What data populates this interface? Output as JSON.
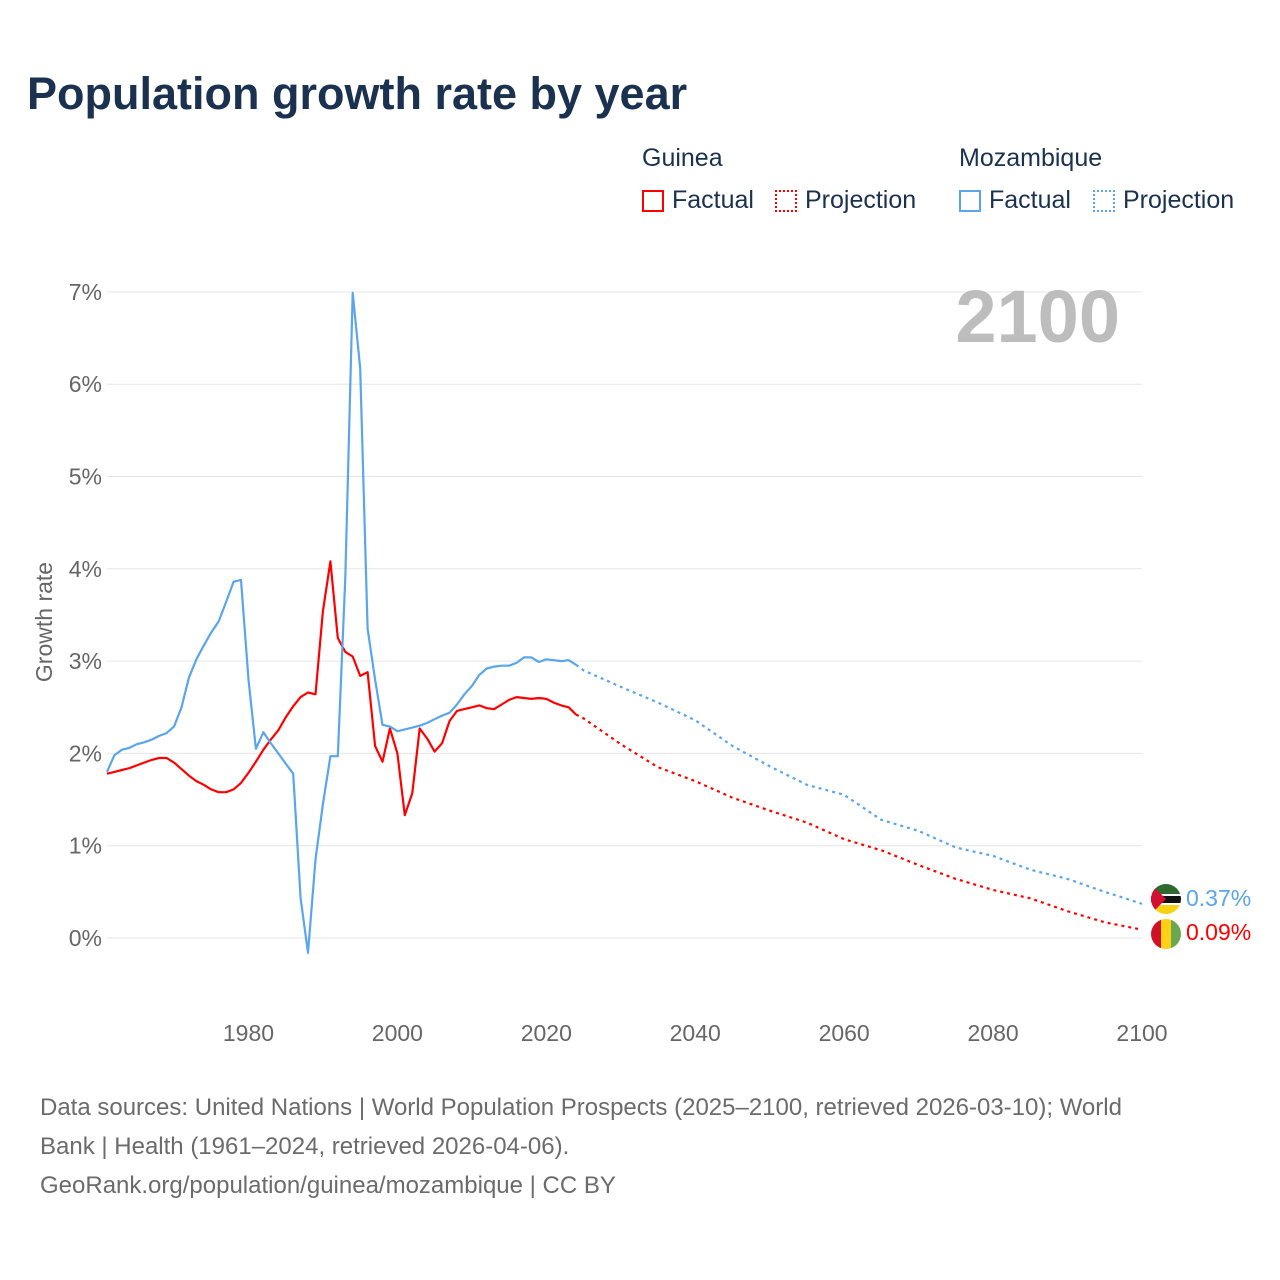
{
  "chart_data": {
    "type": "line",
    "title": "Population growth rate by year",
    "ylabel": "Growth rate",
    "xlabel": "",
    "xlim": [
      1961,
      2100
    ],
    "ylim": [
      -0.5,
      7
    ],
    "xticks": [
      "1980",
      "2000",
      "2020",
      "2040",
      "2060",
      "2080",
      "2100"
    ],
    "xtick_values": [
      1980,
      2000,
      2020,
      2040,
      2060,
      2080,
      2100
    ],
    "yticks": [
      "0%",
      "1%",
      "2%",
      "3%",
      "4%",
      "5%",
      "6%",
      "7%"
    ],
    "ytick_values": [
      0,
      1,
      2,
      3,
      4,
      5,
      6,
      7
    ],
    "grid": true,
    "year_display": "2100",
    "legend": {
      "placement": "top-right",
      "groups": [
        {
          "name": "Guinea",
          "factual": "Factual",
          "projection": "Projection",
          "color": "#ff0000"
        },
        {
          "name": "Mozambique",
          "factual": "Factual",
          "projection": "Projection",
          "color": "#5aa5ec"
        }
      ]
    },
    "series": [
      {
        "name": "Guinea",
        "color": "#ff0000",
        "end_label": "0.09%",
        "factual": {
          "x": [
            1961,
            1962,
            1963,
            1964,
            1965,
            1966,
            1967,
            1968,
            1969,
            1970,
            1971,
            1972,
            1973,
            1974,
            1975,
            1976,
            1977,
            1978,
            1979,
            1980,
            1981,
            1982,
            1983,
            1984,
            1985,
            1986,
            1987,
            1988,
            1989,
            1990,
            1991,
            1992,
            1993,
            1994,
            1995,
            1996,
            1997,
            1998,
            1999,
            2000,
            2001,
            2002,
            2003,
            2004,
            2005,
            2006,
            2007,
            2008,
            2009,
            2010,
            2011,
            2012,
            2013,
            2014,
            2015,
            2016,
            2017,
            2018,
            2019,
            2020,
            2021,
            2022,
            2023,
            2024
          ],
          "y": [
            1.78,
            1.8,
            1.82,
            1.84,
            1.87,
            1.9,
            1.93,
            1.95,
            1.95,
            1.9,
            1.83,
            1.76,
            1.7,
            1.66,
            1.61,
            1.58,
            1.58,
            1.61,
            1.68,
            1.79,
            1.91,
            2.04,
            2.15,
            2.25,
            2.39,
            2.51,
            2.61,
            2.66,
            2.64,
            3.54,
            4.08,
            3.25,
            3.1,
            3.05,
            2.84,
            2.88,
            2.08,
            1.91,
            2.27,
            2.0,
            1.33,
            1.57,
            2.27,
            2.16,
            2.02,
            2.11,
            2.35,
            2.46,
            2.48,
            2.5,
            2.52,
            2.49,
            2.48,
            2.53,
            2.58,
            2.61,
            2.6,
            2.59,
            2.6,
            2.59,
            2.55,
            2.52,
            2.5,
            2.42
          ]
        },
        "projection": {
          "x": [
            2024,
            2025,
            2030,
            2035,
            2040,
            2045,
            2050,
            2055,
            2060,
            2065,
            2070,
            2075,
            2080,
            2085,
            2090,
            2095,
            2100
          ],
          "y": [
            2.42,
            2.38,
            2.1,
            1.85,
            1.7,
            1.52,
            1.38,
            1.25,
            1.07,
            0.95,
            0.79,
            0.64,
            0.52,
            0.43,
            0.29,
            0.17,
            0.09
          ]
        }
      },
      {
        "name": "Mozambique",
        "color": "#5aa5ec",
        "end_label": "0.37%",
        "factual": {
          "x": [
            1961,
            1962,
            1963,
            1964,
            1965,
            1966,
            1967,
            1968,
            1969,
            1970,
            1971,
            1972,
            1973,
            1974,
            1975,
            1976,
            1977,
            1978,
            1979,
            1980,
            1981,
            1982,
            1983,
            1984,
            1985,
            1986,
            1987,
            1988,
            1989,
            1990,
            1991,
            1992,
            1993,
            1994,
            1995,
            1996,
            1997,
            1998,
            1999,
            2000,
            2001,
            2002,
            2003,
            2004,
            2005,
            2006,
            2007,
            2008,
            2009,
            2010,
            2011,
            2012,
            2013,
            2014,
            2015,
            2016,
            2017,
            2018,
            2019,
            2020,
            2021,
            2022,
            2023,
            2024
          ],
          "y": [
            1.8,
            1.98,
            2.04,
            2.06,
            2.1,
            2.12,
            2.15,
            2.19,
            2.22,
            2.29,
            2.5,
            2.82,
            3.02,
            3.17,
            3.31,
            3.43,
            3.64,
            3.86,
            3.88,
            2.8,
            2.05,
            2.23,
            2.11,
            2.0,
            1.89,
            1.78,
            0.43,
            -0.16,
            0.85,
            1.45,
            1.97,
            1.97,
            3.9,
            6.99,
            6.17,
            3.35,
            2.8,
            2.31,
            2.29,
            2.24,
            2.26,
            2.28,
            2.3,
            2.33,
            2.37,
            2.41,
            2.44,
            2.53,
            2.64,
            2.73,
            2.85,
            2.92,
            2.94,
            2.95,
            2.95,
            2.98,
            3.04,
            3.04,
            2.99,
            3.02,
            3.01,
            3.0,
            3.01,
            2.96
          ]
        },
        "projection": {
          "x": [
            2024,
            2025,
            2030,
            2035,
            2040,
            2045,
            2050,
            2055,
            2060,
            2065,
            2070,
            2075,
            2080,
            2085,
            2090,
            2095,
            2100
          ],
          "y": [
            2.96,
            2.9,
            2.72,
            2.55,
            2.36,
            2.08,
            1.86,
            1.66,
            1.55,
            1.28,
            1.16,
            0.98,
            0.89,
            0.74,
            0.64,
            0.5,
            0.37
          ]
        }
      }
    ]
  },
  "footer": {
    "line1": "Data sources: United Nations | World Population Prospects (2025–2100, retrieved 2026-03-10); World",
    "line2": "Bank | Health (1961–2024, retrieved 2026-04-06).",
    "line3": "GeoRank.org/population/guinea/mozambique | CC BY"
  }
}
